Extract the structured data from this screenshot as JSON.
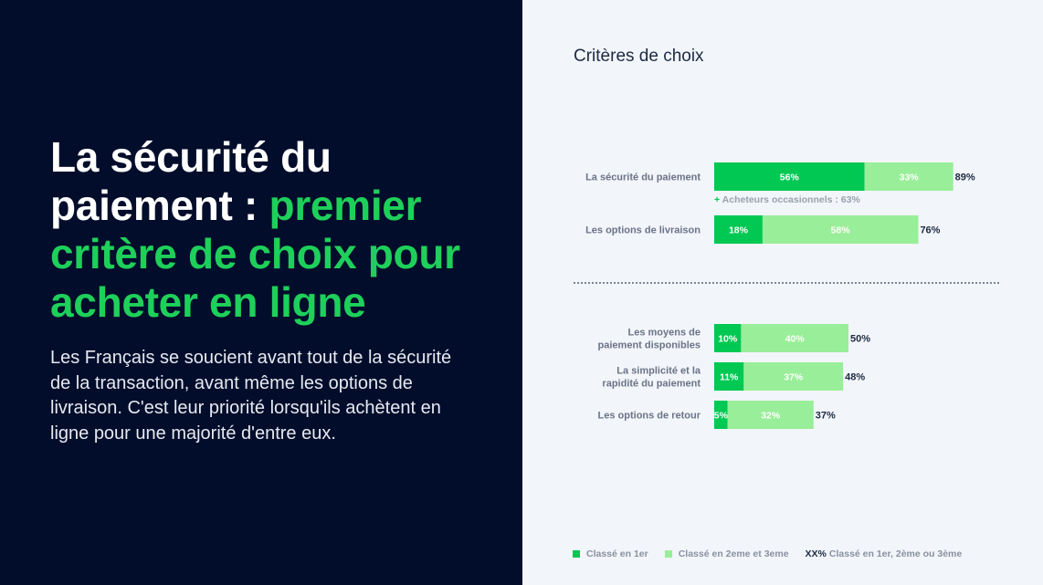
{
  "headline": {
    "part1": "La sécurité du paiement : ",
    "accent": "premier critère de choix pour acheter en ligne"
  },
  "body_text": "Les Français se soucient avant tout de la sécurité de la transaction, avant même les options de livraison. C'est leur priorité lorsqu'ils achètent en ligne pour une majorité d'entre eux.",
  "chart_title": "Critères de choix",
  "colors": {
    "first": "#00c853",
    "second_third": "#99ee99",
    "dark_bg": "#020d2b",
    "accent": "#1ed05a"
  },
  "legend": {
    "first": "Classé en 1er",
    "second_third": "Classé en 2eme et 3eme",
    "total_prefix": "XX%",
    "total": "Classé en 1er, 2ème ou 3ème"
  },
  "chart_data": {
    "type": "bar",
    "orientation": "horizontal",
    "stacked": true,
    "title": "Critères de choix",
    "categories": [
      [
        "La sécurité du paiement"
      ],
      [
        "Les options de livraison"
      ],
      [
        "Les moyens de",
        "paiement disponibles"
      ],
      [
        "La simplicité et la",
        "rapidité du paiement"
      ],
      [
        "Les options de retour"
      ]
    ],
    "series": [
      {
        "name": "Classé en 1er",
        "values": [
          56,
          18,
          10,
          11,
          5
        ]
      },
      {
        "name": "Classé en 2eme et 3eme",
        "values": [
          33,
          58,
          40,
          37,
          32
        ]
      }
    ],
    "totals": [
      89,
      76,
      50,
      48,
      37
    ],
    "annotations": [
      {
        "category_index": 0,
        "marker": "+",
        "text": "Acheteurs occasionnels : 63%"
      }
    ]
  }
}
